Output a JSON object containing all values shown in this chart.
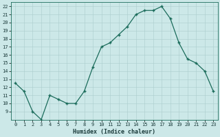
{
  "x": [
    0,
    1,
    2,
    3,
    4,
    5,
    6,
    7,
    8,
    9,
    10,
    11,
    12,
    13,
    14,
    15,
    16,
    17,
    18,
    19,
    20,
    21,
    22,
    23
  ],
  "y": [
    12.5,
    11.5,
    9.0,
    8.0,
    11.0,
    10.5,
    10.0,
    10.0,
    11.5,
    14.5,
    17.0,
    17.5,
    18.5,
    19.5,
    21.0,
    21.5,
    21.5,
    22.0,
    20.5,
    17.5,
    15.5,
    15.0,
    14.0,
    11.5
  ],
  "xlabel": "Humidex (Indice chaleur)",
  "ylim": [
    8,
    22.5
  ],
  "xlim": [
    -0.5,
    23.5
  ],
  "yticks": [
    9,
    10,
    11,
    12,
    13,
    14,
    15,
    16,
    17,
    18,
    19,
    20,
    21,
    22
  ],
  "ytick_labels": [
    "9",
    "10",
    "11",
    "12",
    "13",
    "14",
    "15",
    "16",
    "17",
    "18",
    "19",
    "20",
    "21",
    "22"
  ],
  "xticks": [
    0,
    1,
    2,
    3,
    4,
    5,
    6,
    7,
    8,
    9,
    10,
    11,
    12,
    13,
    14,
    15,
    16,
    17,
    18,
    19,
    20,
    21,
    22,
    23
  ],
  "xtick_labels": [
    "0",
    "1",
    "2",
    "3",
    "4",
    "5",
    "6",
    "7",
    "8",
    "9",
    "10",
    "11",
    "12",
    "13",
    "14",
    "15",
    "16",
    "17",
    "18",
    "19",
    "20",
    "21",
    "22",
    "23"
  ],
  "line_color": "#1a6b5a",
  "marker_color": "#1a6b5a",
  "bg_color": "#cce8e8",
  "grid_color": "#aacccc",
  "border_color": "#1a6b5a",
  "tick_color": "#1a3a3a",
  "xlabel_color": "#1a3a3a",
  "xlabel_fontsize": 6.0,
  "tick_fontsize": 5.0
}
